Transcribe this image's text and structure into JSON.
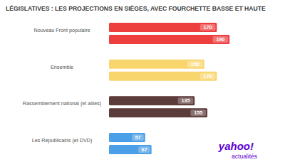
{
  "chart_data": {
    "type": "bar",
    "orientation": "horizontal",
    "data_labels": true,
    "title": "LÉGISLATIVES : LES PROJECTIONS EN SIÈGES, AVEC FOURCHETTE BASSE ET HAUTE",
    "categories": [
      "Nouveau Front populaire",
      "Ensemble",
      "Rassemblement national (et alliés)",
      "Les Républicains (et DVD)"
    ],
    "series": [
      {
        "values": [
          170,
          150,
          135,
          57
        ],
        "colors": [
          "#ee3f3f",
          "#f8d66d",
          "#5c3b3b",
          "#4b9fe6"
        ]
      },
      {
        "values": [
          190,
          170,
          155,
          67
        ],
        "colors": [
          "#ee3f3f",
          "#f8d66d",
          "#5c3b3b",
          "#4b9fe6"
        ]
      }
    ],
    "ylim": [
      0,
      210
    ],
    "annotations": [
      "yahoo!",
      "actualités"
    ]
  }
}
